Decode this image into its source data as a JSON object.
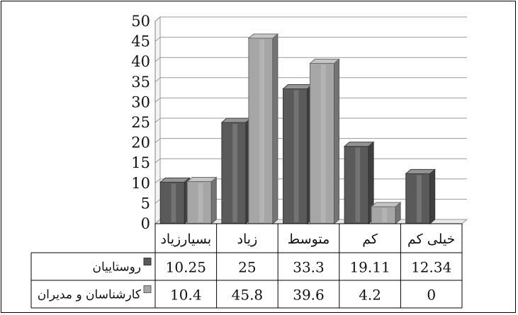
{
  "chart_data": {
    "type": "bar",
    "style": "3d-grouped-bar-with-data-table",
    "categories": [
      "بسیارزیاد",
      "زیاد",
      "متوسط",
      "کم",
      "خیلی کم"
    ],
    "series": [
      {
        "name": "روستاییان",
        "values": [
          10.25,
          25,
          33.3,
          19.11,
          12.34
        ],
        "color": "#5a5a5a"
      },
      {
        "name": "کارشناسان و مدیران",
        "values": [
          10.4,
          45.8,
          39.6,
          4.2,
          0
        ],
        "color": "#a6a6a6"
      }
    ],
    "table_values": [
      [
        "10.25",
        "25",
        "33.3",
        "19.11",
        "12.34"
      ],
      [
        "10.4",
        "45.8",
        "39.6",
        "4.2",
        "0"
      ]
    ],
    "ylim": [
      0,
      50
    ],
    "yticks": [
      "0",
      "5",
      "10",
      "15",
      "20",
      "25",
      "30",
      "35",
      "40",
      "45",
      "50"
    ],
    "grid": true,
    "legend": "data-table-rows"
  }
}
